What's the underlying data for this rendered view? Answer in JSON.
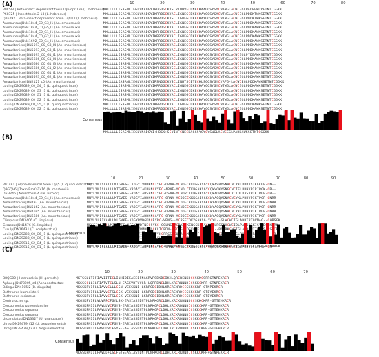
{
  "panels": [
    {
      "label": "(A)",
      "ticks": [
        10,
        20,
        30,
        40,
        50,
        60,
        70,
        80
      ],
      "rows": [
        {
          "name": "P0C5I3 | Beta-insect depressant toxin Lqh-dprIT3a (L. hebraeus)",
          "seq": "MKLLLLLISASMLIEGLVNADGYIRGGDGCKVSCVINHVFCDNECKAAGGSYGYCWAWGLACWCEGLPADREWDYETNTCGGKK"
        },
        {
          "name": "P68725 | Insect toxin 2-13 (L. hebraeus)",
          "seq": "MKLLLLLISASMLIEGLVNADGYIKRRDGCKVACLIGNEGCDKECKAYGGSYGYCWTWGLACWCEGLPDDKTWKSETNTCGGKK"
        },
        {
          "name": "Q26292 | Beta-insect depressant toxin LqhIT2 (L. hebraeus)",
          "seq": "MKLLLLLISASMLIEGLVNADGYIKRRDGCKVSCLIGNEGCDKECKAYGGSYGYCWTWGLACWCEGLPDDKTWKSETNTCGGKK"
        },
        {
          "name": "Aamoureux|DN41844_C0_G3_I1 (An. amoureuxi)",
          "seq": "MKLLLLLISASMLIEGLVNADGYIKRRDGCKVACLIGNEGCDKECKAYGGSYGYCWTWGLACWCEGLPDDKAWKSETNTCGGKK"
        },
        {
          "name": "Aamoureux|DN41844_C0_G5_I1 (An. amoureuxi)",
          "seq": "MKLLLLLISASMLIEGLVNADGYIKRRDGCKVACLIGNEGCDKECKAYGGSYGYCWTWGLACWCEGLPDDKAWKSETNTCGGKK"
        },
        {
          "name": "Aamoureux|DN41844_C0_G1_I1 (An. amoureuxi)",
          "seq": "MKLLLLLISASMLIEGLVNADGYIKRHDGCKVACLIGNEGCDKECKAYGGSYGYCWTWGLACWCEGLPDDKAWKSETNTCGGKK"
        },
        {
          "name": "Aamoureux|DN41844_C0_G2_I1 (An. amoureuxi)",
          "seq": "MKLLLLLISASMLIEGLVNADGYIKRRDGCKVACLIGNEGCDKECKAYGGSYGYCWTWGLACWCEGLPDDKAWKSETNTCGGKK"
        },
        {
          "name": "Aamoureux|DN41692_C0_G4_I1 (An. amoureuxi)",
          "seq": "MKLLLLLISASMLIEGLVNADGYIKRRDGCKVACLIGNEGCDKECKAYGGSYGYCWTWGLACWCEGLPDDKAWKSETNTCGGKK"
        },
        {
          "name": "Amauritanicus|DN5593_C0_G3_I4 (An. mauritanicus)",
          "seq": "MKLLLLLISASMLIEGLVNADGYIKRRDGCKVACLIGNEGCDKECKAYGGSYGYCWTWGLACWCEGLPDDKAWKSETNTCGGKK"
        },
        {
          "name": "Amauritanicus|DN5593_C0_G3_I1 (An. mauritanicus)",
          "seq": "MKLLLLLISASMLIEGLVNADGYIKRRDGCKVACLIGNEGCDKECKAYGGSYGYCWTWGLACWCEGLPDDKAWKSETNTCGGKK"
        },
        {
          "name": "Amauritanicus|DN5593_C0_G1_I1 (An. mauritanicus)",
          "seq": "MKLLLLLISASMLIEGLVNADGYIKRHDGCKVACLIGNEGCDKECKAYGGSYGYCWTWGLACWCEGLPYDEAWKSETNTCGGKK"
        },
        {
          "name": "Amauritanicus|DN6686_C0_G1_I4 (An. mauritanicus)",
          "seq": "MKLLLLLISASMLIEGLVNADGYIKRHDGCKVACLIGNEGCDKECKAYGGSYGYCWTWGLACWCEGLPDDKAWKSETNTCGGKK"
        },
        {
          "name": "Amauritanicus|DN6686_C0_G1_I3 (An. mauritanicus)",
          "seq": "MKLLLLLISASMLIEGLVNADGYIKRRDGCKVSCLIGNEGCDKECKAYGGSYGYCWTWGLACWCEGLPDDKAWKSETNTCGGKK"
        },
        {
          "name": "Amauritanicus|DN6686_C0_G1_I2 (An. mauritanicus)",
          "seq": "MKLLLLLISASMLIEGLVNADGYIKRHDGCKVSCLIGNEGCDKECKAYGGSYGYCWTWGLACWCEGLPDDKAWKSETNTCGGKK"
        },
        {
          "name": "Amauritanicus|DN6686_C0_G1_I1 (An. mauritanicus)",
          "seq": "MKLLLLLISASMLIEGLVNADGYIKRHDGCKVSCLIGNEGCDKECKAYGGSYGYCWTWGLACWCEGLPDDKAWKSETNTCGGKK"
        },
        {
          "name": "Amauritanicus|DN5593_C0_G2_I1 (An. mauritanicus)",
          "seq": "MKLLLLLISASMLIEGLVNADGYIKRRDGCKVACLIGNEGCDKECKAYGGSYGYCWTWGLACWCEGLPDDKAWKSETNTCGGKK"
        },
        {
          "name": "Amauritanicus|DN2121_c0 (An. mauritanicus)",
          "seq": "MKLLLLLIASANLIEGLVNADGYIRSNDGCKVSCLINHTSCETECKLSGGSYGYCYAFG-LACWCEGLPDDKAWKSETNTCGGKK"
        },
        {
          "name": "Lquinq|DN29689_C0_G4_I1 (L. quinquestriatus)",
          "seq": "MKLLLLLISASMLIEGLVNADGYIKRRDGCKVACLIGNEGCDKECKAYGGSYGYCWTWGLACWCEGLPDDKAWKSETNTCGGKK"
        },
        {
          "name": "Lquinq|DN29689_C0_G3_I1 (L. quinquestriatus)",
          "seq": "MKLLLLLISASMLIEGLVNADGYIKRRDGCKVACLIGNEGCDKECKAYGGSYGYCWTWGLACWCEGLPDDKAWKSETNTCGGKK"
        },
        {
          "name": "Lquinq|DN29689_C0_G1_I1 (L. quinquestriatus)",
          "seq": "MKLLLLLISASMLIEGLVNADGYIKRRDGCKVACLIGNEGCDKECKAYGGSYGYCWTWGLACWCEGLPDDKAWKSETNTCGGKK"
        },
        {
          "name": "Lquinq|DN29689_C0_G2_I1 (L. quinquestriatus)",
          "seq": "MKLLLLLISASMLIEGLVNADGYIKRRDGCKVACLIGNEGCDKECKAYGGSYGYCWTWGLACWCEGLPDDKAWKSETNTCGGKK"
        },
        {
          "name": "Lquinq|DN29689_C0_G5_I1 (L. quinquestriatus)",
          "seq": "MKLLLLLISASMLIEGLVNADGYIKRRDGCKVACLIGNEGCDKECKAYGGSYGYCWTWGLACWCEGLPDDKAWKSETNTCGGKK"
        },
        {
          "name": "Lquinq|DN29689_C0_G2_I5 (L. quinquestriatus)",
          "seq": "MKLLLLLISASMLIEGLVNADGYIKRRDGCKVACLIGNEGCDKECKAYGGSYGYCWTWGLACWCEGLPDDKAWKSETNTCGGKK"
        }
      ],
      "consensus_label": "Consensus",
      "consensus_seq": "MKLLLLLISASMLIEGLVNADGYI+HDGK+SCVINFCNECKAGGSYGYCYSWGLACWCEGLPADKAWKSETNTCGGKK",
      "cys_marks": [
        30,
        34,
        41,
        45,
        55,
        61,
        63,
        79
      ]
    },
    {
      "label": "(B)",
      "ticks": [
        10,
        20,
        30,
        40,
        50,
        60,
        70,
        80,
        90
      ],
      "rows": [
        {
          "name": "P01481 | Alpha-mammal toxin Lqq5 (L. quinquestriatus)",
          "seq": "MNYLVMISLALLLMTGVES-LKDGYIVDDKNCTYFC-GRNA-YCNDECKKKGGESGYCQWASPYGNACWCYKLPDRVSIKEKGR-CN--"
        },
        {
          "name": "Q9GQV6 | Toxin BmKaTx16 (M. martensii)",
          "seq": "MNYLVMISLALLLMTGVES-VRDAYIAKPHNCVYEC-ARNE-YCNDLCTKNGAKSGYCQWVGKYGNGCWCIELPDNVPIRIPGK-CR--"
        },
        {
          "name": "D5HR46 | Neurotoxin 4 (Le. bicolor)",
          "seq": "MNYLVMISFALLLMTGVES-GRDAYIADSENCTYFC-GSNP-YCNDVCTKNGAKSGYCQWAGRYGNACYCIDLPASVPIKIPGR-CR--"
        },
        {
          "name": "Aamoureux|DN41844_C0_G4_I1 (An. amoureuxi)",
          "seq": "MNYLVMISLALLLMTGVES-VRDGYIADDKNCAYFC-GRNA-YCDDECKKKGAESGKCWYAGQYGNACWCYKLPDHVPIKTPGR-CNRR"
        },
        {
          "name": "Amauritanicus|DN497 (An. mauritanicus)",
          "seq": "MNYLVMISLALLLMTGVES-VRDGYIADDKNCAYFC-GRNA-YCDDECKKKGAESGKCWYAGQYGNACWCYKLPDHVPIKTPGR-CNRR"
        },
        {
          "name": "Amauritanicus|DN5162 (An. mauritanicus)",
          "seq": "MNYLVMISLALLLMTGVES-VRDGYIAKPHNCAYFC-GRNA-YCNDECKKKGAESGKCWYAGQYGNACWCYKLPDHVPIKTPGR-CNRR"
        },
        {
          "name": "Amauritanicus|DN4695 (An. mauritanicus)",
          "seq": "MNYLVMISLALLLMTGVES-VRDGYIADDKNCAYFC-GRNA-YCDDECKKKGAESGKCWYAGQYGNACWCYKLPDHVPIKTPGR-CNRR"
        },
        {
          "name": "Amauritanicus|DN6686 (An. mauritanicus)",
          "seq": "MNYLVMISLALLLMTGVES-VRDGYIADDKNCAYFC-GRNA-YCDDECKKKGAESGKCWYAGQYGNACWCYKLPDHVPIKTPGR-CNRR"
        },
        {
          "name": "Climpidus|DN3406 (C. limpidus)",
          "seq": "MKVLVLFIVAALLMLGVKE-KDGYPVDGKNCRYPC-VRNG--YCRSECDKYGAKSG-YCYL--GLWCWCIGLADDTPTQVNAG--CAPSGK"
        },
        {
          "name": "Ccrassus|DN1476 (C. limpidus)",
          "seq": "MKSFILFICCLMIWVVES-KEGYPVDTNECSYKC-GGLNGTYCDKICKENGGKSGYCSWQLRSGNHCWCIDLPANKPIKISYSDGRKCRK"
        },
        {
          "name": "Csculp|DN16431 (C. sculpturatus)",
          "seq": "MKVLLLIVMISVGIIKVDGS-KDGYPMDHKGCKLTCFDN-GFCNGKCDSKQGESGYCYNA--RGGRKCWCIGLADDKPTTKVDSATSKCR"
        },
        {
          "name": "Lquinq|DN29288_C0_G6_I1 (L. quinquestriatus)",
          "seq": "MNYLVMISLALLLMIGVES-VRDGYIAKPHNCVYHCFPGSKCQVRDRMYGYGFEYLKGESGYCEKGTEYFGLRNRYGNRPIRIPGK-CR--"
        },
        {
          "name": "Lquinq|DN29288_C0_G6_I1 (L. quinquestriatus)",
          "seq": "MNYLVMISLALLLMIGVES-ARDGYIAKPENCAYHC-GRNG-YCNDECKKNGGKSGYCQWQGKYGNACWCIDLPDDVPIRIPGK-CR--"
        },
        {
          "name": "Lquinq|DN29915_C2_G4_I1 (L. quinquestriatus)",
          "seq": "MNYLVMISLALLLMIGVES-ARDGYIAKPENCAYHC-GRNG-YCNDECKKNGGKSGYCQWQGKYGNACWCIDLPDDVPIRIPGK-CR--"
        },
        {
          "name": "Lquinq|DN29915_C0_G1_I1 (L. quinquestriatus)",
          "seq": "MNYLVMISLALLLMIGVES-ARDGYIAKPENCAYHC-GRNG-YCNDECKKNGGKSGYCQWQGKYGNACWCIDLPDDVPIRIPGK-CR--"
        }
      ],
      "consensus_label": "Consensus",
      "consensus_seq": "MNYLVMISLALLLMTGVES+VRDGYIADDKNC+YFC+RNA+YCNDECKKNGAESGYCQWAGKYGNACWCYKLPDDVPIKIPGR-KCNRRGK",
      "cys_marks": [
        32,
        36,
        42,
        46,
        58,
        66,
        68,
        86
      ]
    },
    {
      "label": "(C)",
      "ticks": [
        10,
        20,
        30,
        40,
        50,
        60,
        70
      ],
      "rows": [
        {
          "name": "B8QG00 | Hadrucalcin (H. gertschi)",
          "seq": "MKTSSLLTIFIAVIITICLINHIDIEAEEEFNAGRVRSEKDCIKHLQRCRENKDCCSKKCSRRGTNPEKRCR"
        },
        {
          "name": "Aphaep|DN73205_c4 (Aphaeochactas)",
          "seq": "MKGSSCLLILFIATVTCLSLN-EASEVRTVVGR-LQRRENCLDHLKRCRNNNDCCSKKCKRR-GTNPEKRCR"
        },
        {
          "name": "Bdiegu|DN4105I2 (B. diaguita)",
          "seq": "MKGSKFVIFLLIAVVCLLLCSN-VEESKNE-LKRRGDCIDHLKRCRENRDCCSKKCKRR-GTNPEKRCR"
        },
        {
          "name": "Bothriurus burmeisteri",
          "seq": "MKGSKFVIFLLIAVVCFSLCSK-VEESKNE-LKRRGDCIDHLKRCRENRDCCSKKCKRR-GTEYEKRCR"
        },
        {
          "name": "Bothriurus coriaceus",
          "seq": "MKGSKFVIFLLIAVVCFSLCSK-VEESKNE-LKRRGDCIDHLKRCRENRDCCSKKCKRR-GTEYEKRCR"
        },
        {
          "name": "Centruroctes sp.",
          "seq": "MKGSKFVIFLVLVFFCFGYLSK-EASIASSDNTPLNRKGRCLDHLKRCKRDNNDCCSKKCKRR-GTTEHKRCR"
        },
        {
          "name": "Cercophonius queenslandiae",
          "seq": "MKGSKFMIILFAVLLVCFGYS-EASIASSDNTPLNRKGRCLDHLKRCKRDNNDCCSKKCKRR-GTTEHKRCR"
        },
        {
          "name": "Cercophonius squama",
          "seq": "MKGSKFMIILFAVLLVCFGYS-EASIASSDNTPLNRKGRCLDHLKRCKRDNNDCCSKKCKRR-GTTEHKRCR"
        },
        {
          "name": "Cercophonius squama",
          "seq": "MKGSKFMIILFAVLLVCFGYS-EASIASSDNTPLNRKGRCLDHLKRCKRDNNDCCSKKCKRR-GTTEHKRCR"
        },
        {
          "name": "Urganulatus|DN13327 (U. granulatus)",
          "seq": "MKGSKFMIILFAVLLVCFGYS-EASIASSDNTPLNRKGRCLDHLKRCKRDNNDCCSKKCKRR-GTTEHKRCR"
        },
        {
          "name": "Utreg|DN29479_t12 (U. treguelementsi)",
          "seq": "MKGSKFMIILFAVLLVCFGYS-EASIASSDNTPLNRKGRCLDHLKRCKRDNNDCCSKKCKRR-GTTEHKRCR"
        },
        {
          "name": "Utreg|DN29479_t2 (U. treguelementsi)",
          "seq": "MKGSKFMIILFAVLLVCFGYS-EASIASSDNTPLNRKGRCLDHLKRCKRDNNDCCSKKCKRR-GTTEHKRCR"
        }
      ],
      "consensus_label": "Consensus",
      "consensus_seq": "MKGSKFMIILFAVLL+LSCFGYSEASIASSDNTPLNRKGRCLDHLKRCRKDNDCCSKKCKRR+GTNPEKRCR",
      "cys_marks": [
        41,
        48,
        55,
        56,
        61,
        71
      ]
    }
  ]
}
